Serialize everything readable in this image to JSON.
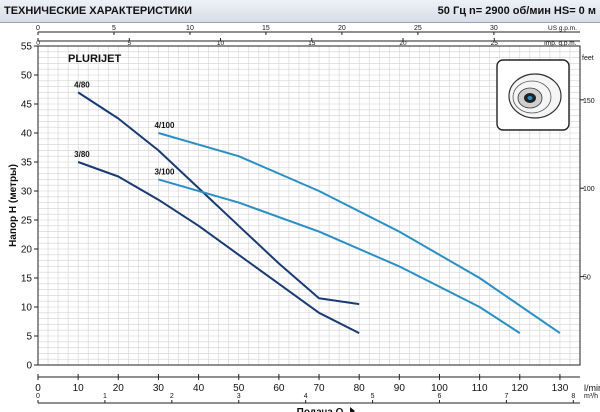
{
  "header": {
    "title": "ТЕХНИЧЕСКИЕ ХАРАКТЕРИСТИКИ",
    "spec": "50 Гц    n= 2900 об/мин    HS= 0 м"
  },
  "chart_data": {
    "type": "line",
    "title": "PLURIJET",
    "xlabel": "Подача Q",
    "ylabel": "Напор H (метры)",
    "x_unit": "l/min",
    "x_unit_alt": "m³/h",
    "y_unit_right": "feet",
    "xlim": [
      0,
      135
    ],
    "ylim": [
      0,
      55
    ],
    "x_ticks": [
      0,
      10,
      20,
      30,
      40,
      50,
      60,
      70,
      80,
      90,
      100,
      110,
      120,
      130
    ],
    "y_ticks": [
      0,
      5,
      10,
      15,
      20,
      25,
      30,
      35,
      40,
      45,
      50,
      55
    ],
    "m3h_ticks": [
      "0",
      "1",
      "2",
      "3",
      "4",
      "5",
      "6",
      "7",
      "8"
    ],
    "us_gpm_label": "US g.p.m.",
    "us_gpm_ticks": [
      "0",
      "5",
      "10",
      "15",
      "20",
      "25",
      "30"
    ],
    "imp_gpm_label": "Imp. g.p.m.",
    "imp_gpm_ticks": [
      "0",
      "5",
      "10",
      "15",
      "20",
      "25"
    ],
    "feet_ticks": [
      "50",
      "100",
      "150"
    ],
    "grid": true,
    "series": [
      {
        "name": "4/80",
        "color": "#1a3a73",
        "x": [
          10,
          20,
          30,
          40,
          50,
          60,
          70,
          80
        ],
        "y": [
          47,
          42.5,
          37,
          30.5,
          24,
          17.5,
          11.5,
          10.5
        ]
      },
      {
        "name": "3/80",
        "color": "#1a3a73",
        "x": [
          10,
          20,
          30,
          40,
          50,
          60,
          70,
          80
        ],
        "y": [
          35,
          32.5,
          28.5,
          24,
          19,
          14,
          9,
          5.5
        ]
      },
      {
        "name": "4/100",
        "color": "#2a8fc4",
        "x": [
          30,
          50,
          70,
          90,
          110,
          130
        ],
        "y": [
          40,
          36,
          30,
          23,
          15,
          5.5
        ]
      },
      {
        "name": "3/100",
        "color": "#2a8fc4",
        "x": [
          30,
          50,
          70,
          90,
          110,
          120
        ],
        "y": [
          32,
          28,
          23,
          17,
          10,
          5.5
        ]
      }
    ]
  }
}
